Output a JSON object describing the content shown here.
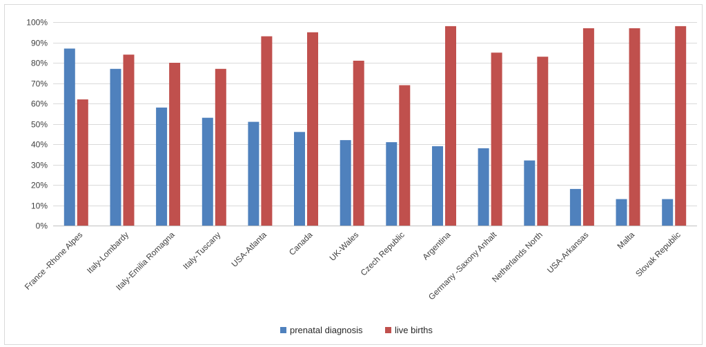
{
  "chart_data": {
    "type": "bar",
    "categories": [
      "France -Rhone Alpes",
      "Italy-Lombardy",
      "Italy-Emilia Romagna",
      "Italy-Tuscany",
      "USA-Atlanta",
      "Canada",
      "UK-Wales",
      "Czech Republic",
      "Argentina",
      "Germany -Saxony Anhalt",
      "Netherlands North",
      "USA-Arkansas",
      "Malta",
      "Slovak Republic"
    ],
    "series": [
      {
        "name": "prenatal diagnosis",
        "color": "#4f81bd",
        "values": [
          87,
          77,
          58,
          53,
          51,
          46,
          42,
          41,
          39,
          38,
          32,
          18,
          13,
          13
        ]
      },
      {
        "name": "live  births",
        "color": "#c0504d",
        "values": [
          62,
          84,
          80,
          77,
          93,
          95,
          81,
          69,
          98,
          85,
          83,
          97,
          97,
          98
        ]
      }
    ],
    "ylim": [
      0,
      100
    ],
    "yticks": [
      "0%",
      "10%",
      "20%",
      "30%",
      "40%",
      "50%",
      "60%",
      "70%",
      "80%",
      "90%",
      "100%"
    ],
    "grid": true,
    "legend_position": "bottom"
  }
}
